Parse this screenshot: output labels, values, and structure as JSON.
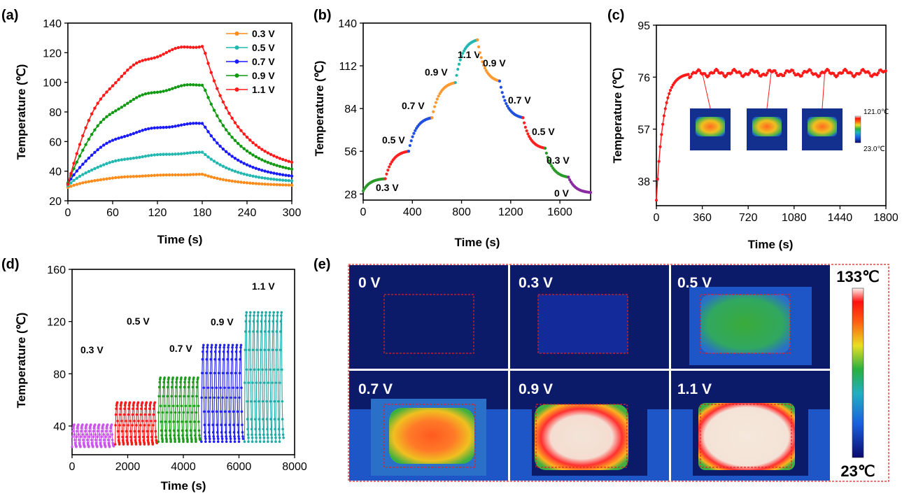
{
  "chart_data": [
    {
      "id": "a",
      "type": "line",
      "panel_label": "(a)",
      "xlabel": "Time (s)",
      "ylabel": "Temperature (℃)",
      "xlim": [
        0,
        300
      ],
      "ylim": [
        20,
        140
      ],
      "xticks": [
        0,
        60,
        120,
        180,
        240,
        300
      ],
      "yticks": [
        20,
        40,
        60,
        80,
        100,
        120,
        140
      ],
      "legend": "top-right",
      "series": [
        {
          "name": "0.3 V",
          "color": "#ff8c1a",
          "start": 29,
          "plateau": 38,
          "end": 30
        },
        {
          "name": "0.5 V",
          "color": "#22b8b0",
          "start": 30,
          "plateau": 53,
          "end": 32
        },
        {
          "name": "0.7 V",
          "color": "#1a1aff",
          "start": 31,
          "plateau": 73,
          "end": 34
        },
        {
          "name": "0.9 V",
          "color": "#119911",
          "start": 32,
          "plateau": 100,
          "end": 37
        },
        {
          "name": "1.1 V",
          "color": "#ff1a1a",
          "start": 32,
          "plateau": 127,
          "end": 40
        }
      ]
    },
    {
      "id": "b",
      "type": "line",
      "panel_label": "(b)",
      "xlabel": "Time (s)",
      "ylabel": "Temperature (℃)",
      "xlim": [
        0,
        1850
      ],
      "ylim": [
        24,
        140
      ],
      "xticks": [
        0,
        400,
        800,
        1200,
        1600
      ],
      "yticks": [
        28,
        56,
        84,
        112,
        140
      ],
      "segments": [
        {
          "label": "0.3 V",
          "color": "#2a9b2a",
          "t0": 0,
          "t1": 180,
          "y0": 30,
          "y1": 38
        },
        {
          "label": "0.5 V",
          "color": "#ff2020",
          "t0": 180,
          "t1": 370,
          "y0": 38,
          "y1": 56
        },
        {
          "label": "0.7 V",
          "color": "#2050e0",
          "t0": 370,
          "t1": 560,
          "y0": 56,
          "y1": 78
        },
        {
          "label": "0.9 V",
          "color": "#ff9a30",
          "t0": 560,
          "t1": 750,
          "y0": 78,
          "y1": 101
        },
        {
          "label": "1.1 V",
          "color": "#22b8b0",
          "t0": 750,
          "t1": 930,
          "y0": 101,
          "y1": 129
        },
        {
          "label": "0.9 V",
          "color": "#ff9a30",
          "t0": 930,
          "t1": 1110,
          "y0": 129,
          "y1": 102
        },
        {
          "label": "0.7 V",
          "color": "#2050e0",
          "t0": 1110,
          "t1": 1300,
          "y0": 102,
          "y1": 78
        },
        {
          "label": "0.5 V",
          "color": "#ff2020",
          "t0": 1300,
          "t1": 1480,
          "y0": 78,
          "y1": 58
        },
        {
          "label": "0.3 V",
          "color": "#2a9b2a",
          "t0": 1480,
          "t1": 1670,
          "y0": 58,
          "y1": 39
        },
        {
          "label": "0 V",
          "color": "#8a2aa0",
          "t0": 1670,
          "t1": 1850,
          "y0": 39,
          "y1": 29
        }
      ]
    },
    {
      "id": "c",
      "type": "line",
      "panel_label": "(c)",
      "xlabel": "Time (s)",
      "ylabel": "Temperature (℃)",
      "xlim": [
        0,
        1800
      ],
      "ylim": [
        29,
        95
      ],
      "xticks": [
        0,
        360,
        720,
        1080,
        1440,
        1800
      ],
      "yticks": [
        38,
        57,
        76,
        95
      ],
      "series": [
        {
          "color": "#ff1a1a",
          "start": 31,
          "plateau": 77.5
        }
      ],
      "inset_times": [
        360,
        900,
        1320
      ],
      "colorbar": {
        "max": "121.0℃",
        "min": "23.0℃"
      }
    },
    {
      "id": "d",
      "type": "scatter",
      "panel_label": "(d)",
      "xlabel": "Time (s)",
      "ylabel": "Temperature (℃)",
      "xlim": [
        0,
        8000
      ],
      "ylim": [
        18,
        160
      ],
      "xticks": [
        0,
        2000,
        4000,
        6000,
        8000
      ],
      "yticks": [
        40,
        80,
        120,
        160
      ],
      "groups": [
        {
          "label": "0.3 V",
          "color": "#cc55ee",
          "t0": 0,
          "t1": 1500,
          "low": 24,
          "high": 41
        },
        {
          "label": "0.5 V",
          "color": "#ff1a1a",
          "t0": 1550,
          "t1": 3050,
          "low": 26,
          "high": 58
        },
        {
          "label": "0.7 V",
          "color": "#1e9a1e",
          "t0": 3100,
          "t1": 4600,
          "low": 28,
          "high": 77
        },
        {
          "label": "0.9 V",
          "color": "#2222ee",
          "t0": 4650,
          "t1": 6150,
          "low": 28,
          "high": 102
        },
        {
          "label": "1.1 V",
          "color": "#22aaa6",
          "t0": 6200,
          "t1": 7600,
          "low": 28,
          "high": 127
        }
      ]
    }
  ],
  "panel_e": {
    "label": "(e)",
    "images": [
      "0 V",
      "0.3 V",
      "0.5 V",
      "0.7 V",
      "0.9 V",
      "1.1 V"
    ],
    "scale_max": "133℃",
    "scale_min": "23℃"
  }
}
